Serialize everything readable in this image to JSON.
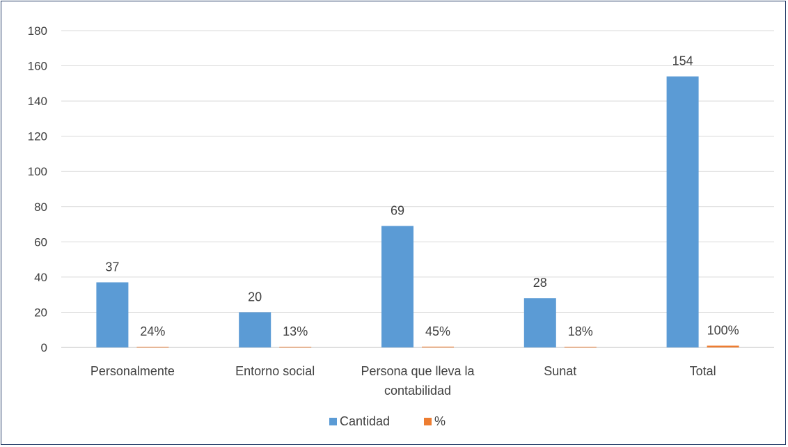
{
  "chart_data": {
    "type": "bar",
    "title": "",
    "xlabel": "",
    "ylabel": "",
    "ylim": [
      0,
      180
    ],
    "yticks": [
      0,
      20,
      40,
      60,
      80,
      100,
      120,
      140,
      160,
      180
    ],
    "grid": true,
    "legend_position": "bottom",
    "categories": [
      [
        "Personalmente"
      ],
      [
        "Entorno social"
      ],
      [
        "Persona que lleva la",
        "contabilidad"
      ],
      [
        "Sunat"
      ],
      [
        "Total"
      ]
    ],
    "series": [
      {
        "name": "Cantidad",
        "color": "#5b9bd5",
        "values": [
          37,
          20,
          69,
          28,
          154
        ],
        "labels": [
          "37",
          "20",
          "69",
          "28",
          "154"
        ]
      },
      {
        "name": "%",
        "color": "#ed7d31",
        "values": [
          0.24,
          0.13,
          0.45,
          0.18,
          1.0
        ],
        "labels": [
          "24%",
          "13%",
          "45%",
          "18%",
          "100%"
        ]
      }
    ]
  }
}
